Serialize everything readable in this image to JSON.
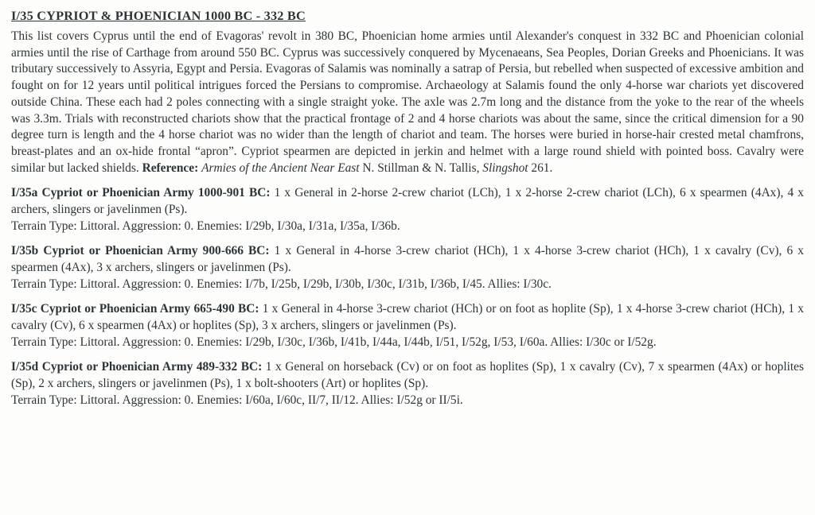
{
  "title": "I/35  CYPRIOT & PHOENICIAN  1000 BC - 332 BC",
  "intro": "This list covers Cyprus until the end of Evagoras' revolt in 380 BC, Phoenician home armies until Alexander's conquest in 332 BC and Phoenician colonial armies until the rise of Carthage from around 550 BC. Cyprus was successively conquered by Mycenaeans, Sea Peoples, Dorian Greeks and Phoenicians. It was tributary successively to Assyria, Egypt and Persia. Evagoras of Salamis was nominally a satrap of Persia, but rebelled when suspected of excessive ambition and fought on for 12 years until political intrigues forced the Persians to compromise. Archaeology at Salamis found the only 4-horse war chariots yet discovered outside China. These each had 2 poles connecting with a single straight yoke. The axle was 2.7m long and the distance from the yoke to the rear of the wheels was 3.3m. Trials with reconstructed chariots show that the practical frontage of 2 and 4 horse chariots was about the same, since the critical dimension for a 90 degree turn is length and the 4 horse chariot was no wider than the length of chariot and team. The horses were buried in horse-hair crested metal chamfrons, breast-plates and an ox-hide frontal “apron”. Cypriot spearmen are depicted in jerkin and helmet with a large round shield with pointed boss. Cavalry were similar but lacked shields. ",
  "reference_label": "Reference:",
  "reference_italic_1": "Armies of the Ancient Near East",
  "reference_mid": " N. Stillman & N. Tallis, ",
  "reference_italic_2": "Slingshot",
  "reference_tail": " 261.",
  "entries": [
    {
      "head": "I/35a Cypriot or Phoenician Army 1000-901 BC:",
      "body": " 1 x General in 2-horse 2-crew chariot (LCh), 1 x 2-horse 2-crew chariot (LCh), 6 x spearmen (4Ax), 4 x archers, slingers or javelinmen (Ps).",
      "meta": "Terrain Type: Littoral.  Aggression: 0.  Enemies: I/29b, I/30a, I/31a, I/35a, I/36b."
    },
    {
      "head": "I/35b Cypriot or Phoenician Army 900-666 BC:",
      "body": " 1 x General in 4-horse 3-crew chariot (HCh), 1 x 4-horse 3-crew chariot (HCh), 1 x cavalry (Cv), 6 x spearmen (4Ax), 3 x archers, slingers or javelinmen (Ps).",
      "meta": "Terrain Type: Littoral.  Aggression: 0.  Enemies: I/7b, I/25b, I/29b, I/30b, I/30c, I/31b, I/36b, I/45.  Allies: I/30c."
    },
    {
      "head": "I/35c Cypriot or Phoenician Army 665-490 BC:",
      "body": " 1 x General in 4-horse 3-crew chariot (HCh) or on foot as hoplite (Sp), 1 x 4-horse 3-crew chariot (HCh), 1 x cavalry (Cv), 6 x spearmen (4Ax) or hoplites (Sp), 3 x archers, slingers or javelinmen (Ps).",
      "meta": "Terrain Type: Littoral.  Aggression: 0.  Enemies: I/29b, I/30c, I/36b, I/41b, I/44a, I/44b, I/51, I/52g, I/53, I/60a.  Allies: I/30c or I/52g."
    },
    {
      "head": "I/35d Cypriot or Phoenician Army 489-332 BC:",
      "body": " 1 x General on horseback (Cv) or on foot as hoplites (Sp), 1 x cavalry (Cv), 7 x spearmen (4Ax) or hoplites (Sp), 2 x archers, slingers or javelinmen (Ps), 1 x bolt-shooters (Art) or hoplites (Sp).",
      "meta": "Terrain Type: Littoral.  Aggression: 0.  Enemies: I/60a, I/60c, II/7, II/12.  Allies: I/52g or II/5i."
    }
  ]
}
